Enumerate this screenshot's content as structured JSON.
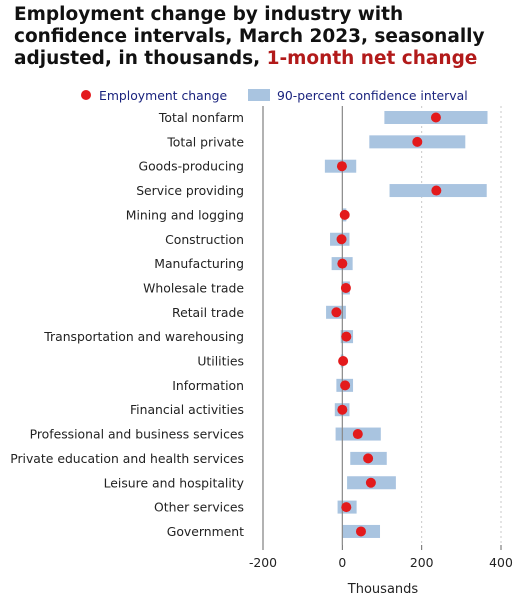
{
  "title": {
    "main": "Employment change by industry with confidence intervals, March 2023, seasonally adjusted, in thousands,",
    "highlight": "1-month net change"
  },
  "legend": {
    "point_label": "Employment change",
    "band_label": "90-percent confidence interval"
  },
  "colors": {
    "point": "#e31a1c",
    "band": "#a9c4e0",
    "zero_line": "#888888",
    "grid": "#c8c8c8",
    "title_highlight": "#b21a1a",
    "legend_text": "#1a237e"
  },
  "chart_data": {
    "type": "scatter",
    "orientation": "horizontal",
    "xlabel": "Thousands",
    "xlim": [
      -200,
      400
    ],
    "xticks": [
      -200,
      0,
      200,
      400
    ],
    "grid": "vertical dotted at ticks",
    "legend_position": "top",
    "categories": [
      "Total nonfarm",
      "Total private",
      "Goods-producing",
      "Service providing",
      "Mining and logging",
      "Construction",
      "Manufacturing",
      "Wholesale trade",
      "Retail trade",
      "Transportation and warehousing",
      "Utilities",
      "Information",
      "Financial activities",
      "Professional and business services",
      "Private education and health services",
      "Leisure and hospitality",
      "Other services",
      "Government"
    ],
    "series": [
      {
        "name": "Employment change",
        "values": [
          236,
          189,
          -1,
          237,
          6,
          -2,
          0,
          9,
          -15,
          10,
          2,
          7,
          0,
          39,
          65,
          72,
          10,
          47
        ]
      },
      {
        "name": "90-percent confidence interval",
        "low": [
          106,
          68,
          -44,
          119,
          -1,
          -31,
          -27,
          -2,
          -41,
          -4,
          -4,
          -15,
          -19,
          -17,
          20,
          12,
          -12,
          0
        ],
        "high": [
          366,
          310,
          35,
          364,
          10,
          18,
          26,
          19,
          9,
          27,
          3,
          27,
          18,
          97,
          112,
          135,
          36,
          95
        ]
      }
    ]
  }
}
